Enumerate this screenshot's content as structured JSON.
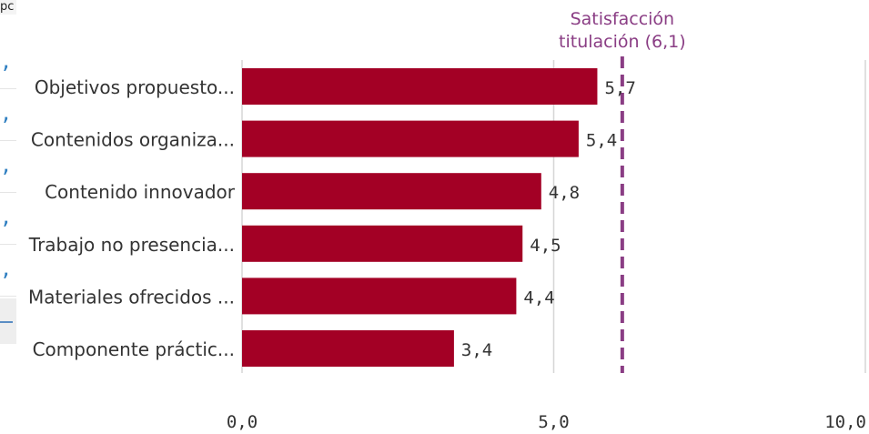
{
  "background": {
    "header_fragment": "pc",
    "cell_fragments": [
      ",(",
      ",(",
      ",(",
      ",(",
      ",("
    ]
  },
  "chart_data": {
    "type": "bar",
    "orientation": "horizontal",
    "categories": [
      "Objetivos propuesto...",
      "Contenidos organiza...",
      "Contenido innovador",
      "Trabajo no presencia...",
      "Materiales ofrecidos ...",
      "Componente práctic..."
    ],
    "values": [
      5.7,
      5.4,
      4.8,
      4.5,
      4.4,
      3.4
    ],
    "value_labels": [
      "5,7",
      "5,4",
      "4,8",
      "4,5",
      "4,4",
      "3,4"
    ],
    "xlim": [
      0,
      10
    ],
    "x_ticks": [
      0,
      5,
      10
    ],
    "x_tick_labels": [
      "0,0",
      "5,0",
      "10,0"
    ],
    "grid": true,
    "reference_line": {
      "value": 6.1,
      "label_lines": [
        "Satisfacción",
        "titulación (6,1)"
      ],
      "style": "dashed"
    },
    "colors": {
      "bar": "#a30025",
      "reference": "#8a3d84",
      "grid": "#d6d6d6",
      "text": "#333333"
    }
  }
}
